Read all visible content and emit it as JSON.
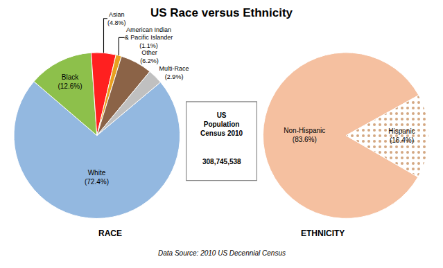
{
  "chart_data": [
    {
      "type": "pie",
      "title": "US Race versus Ethnicity",
      "xlabel": "RACE",
      "categories": [
        "White",
        "Black",
        "Asian",
        "American Indian\n& Pacific Islander",
        "Other",
        "Multi-Race"
      ],
      "values": [
        72.4,
        12.6,
        4.8,
        1.1,
        6.2,
        2.9
      ],
      "value_labels": [
        "(72.4%)",
        "(12.6%)",
        "(4.8%)",
        "(1.1%)",
        "(6.2%)",
        "(2.9%)"
      ],
      "colors": [
        "#93b8e0",
        "#8dc04b",
        "#ff2020",
        "#e8a020",
        "#8b6347",
        "#c0c0c0"
      ],
      "data_labels": true,
      "annotations": [
        "US\nPopulation\nCensus 2010",
        "308,745,538",
        "Data Source: 2010 US Decennial Census"
      ]
    },
    {
      "type": "pie",
      "xlabel": "ETHNICITY",
      "categories": [
        "Non-Hispanic",
        "Hispanic"
      ],
      "values": [
        83.6,
        16.4
      ],
      "value_labels": [
        "(83.6%)",
        "(16.4%)"
      ],
      "colors": [
        "#f5c0a0",
        "#e8c8b0"
      ],
      "data_labels": true
    }
  ]
}
